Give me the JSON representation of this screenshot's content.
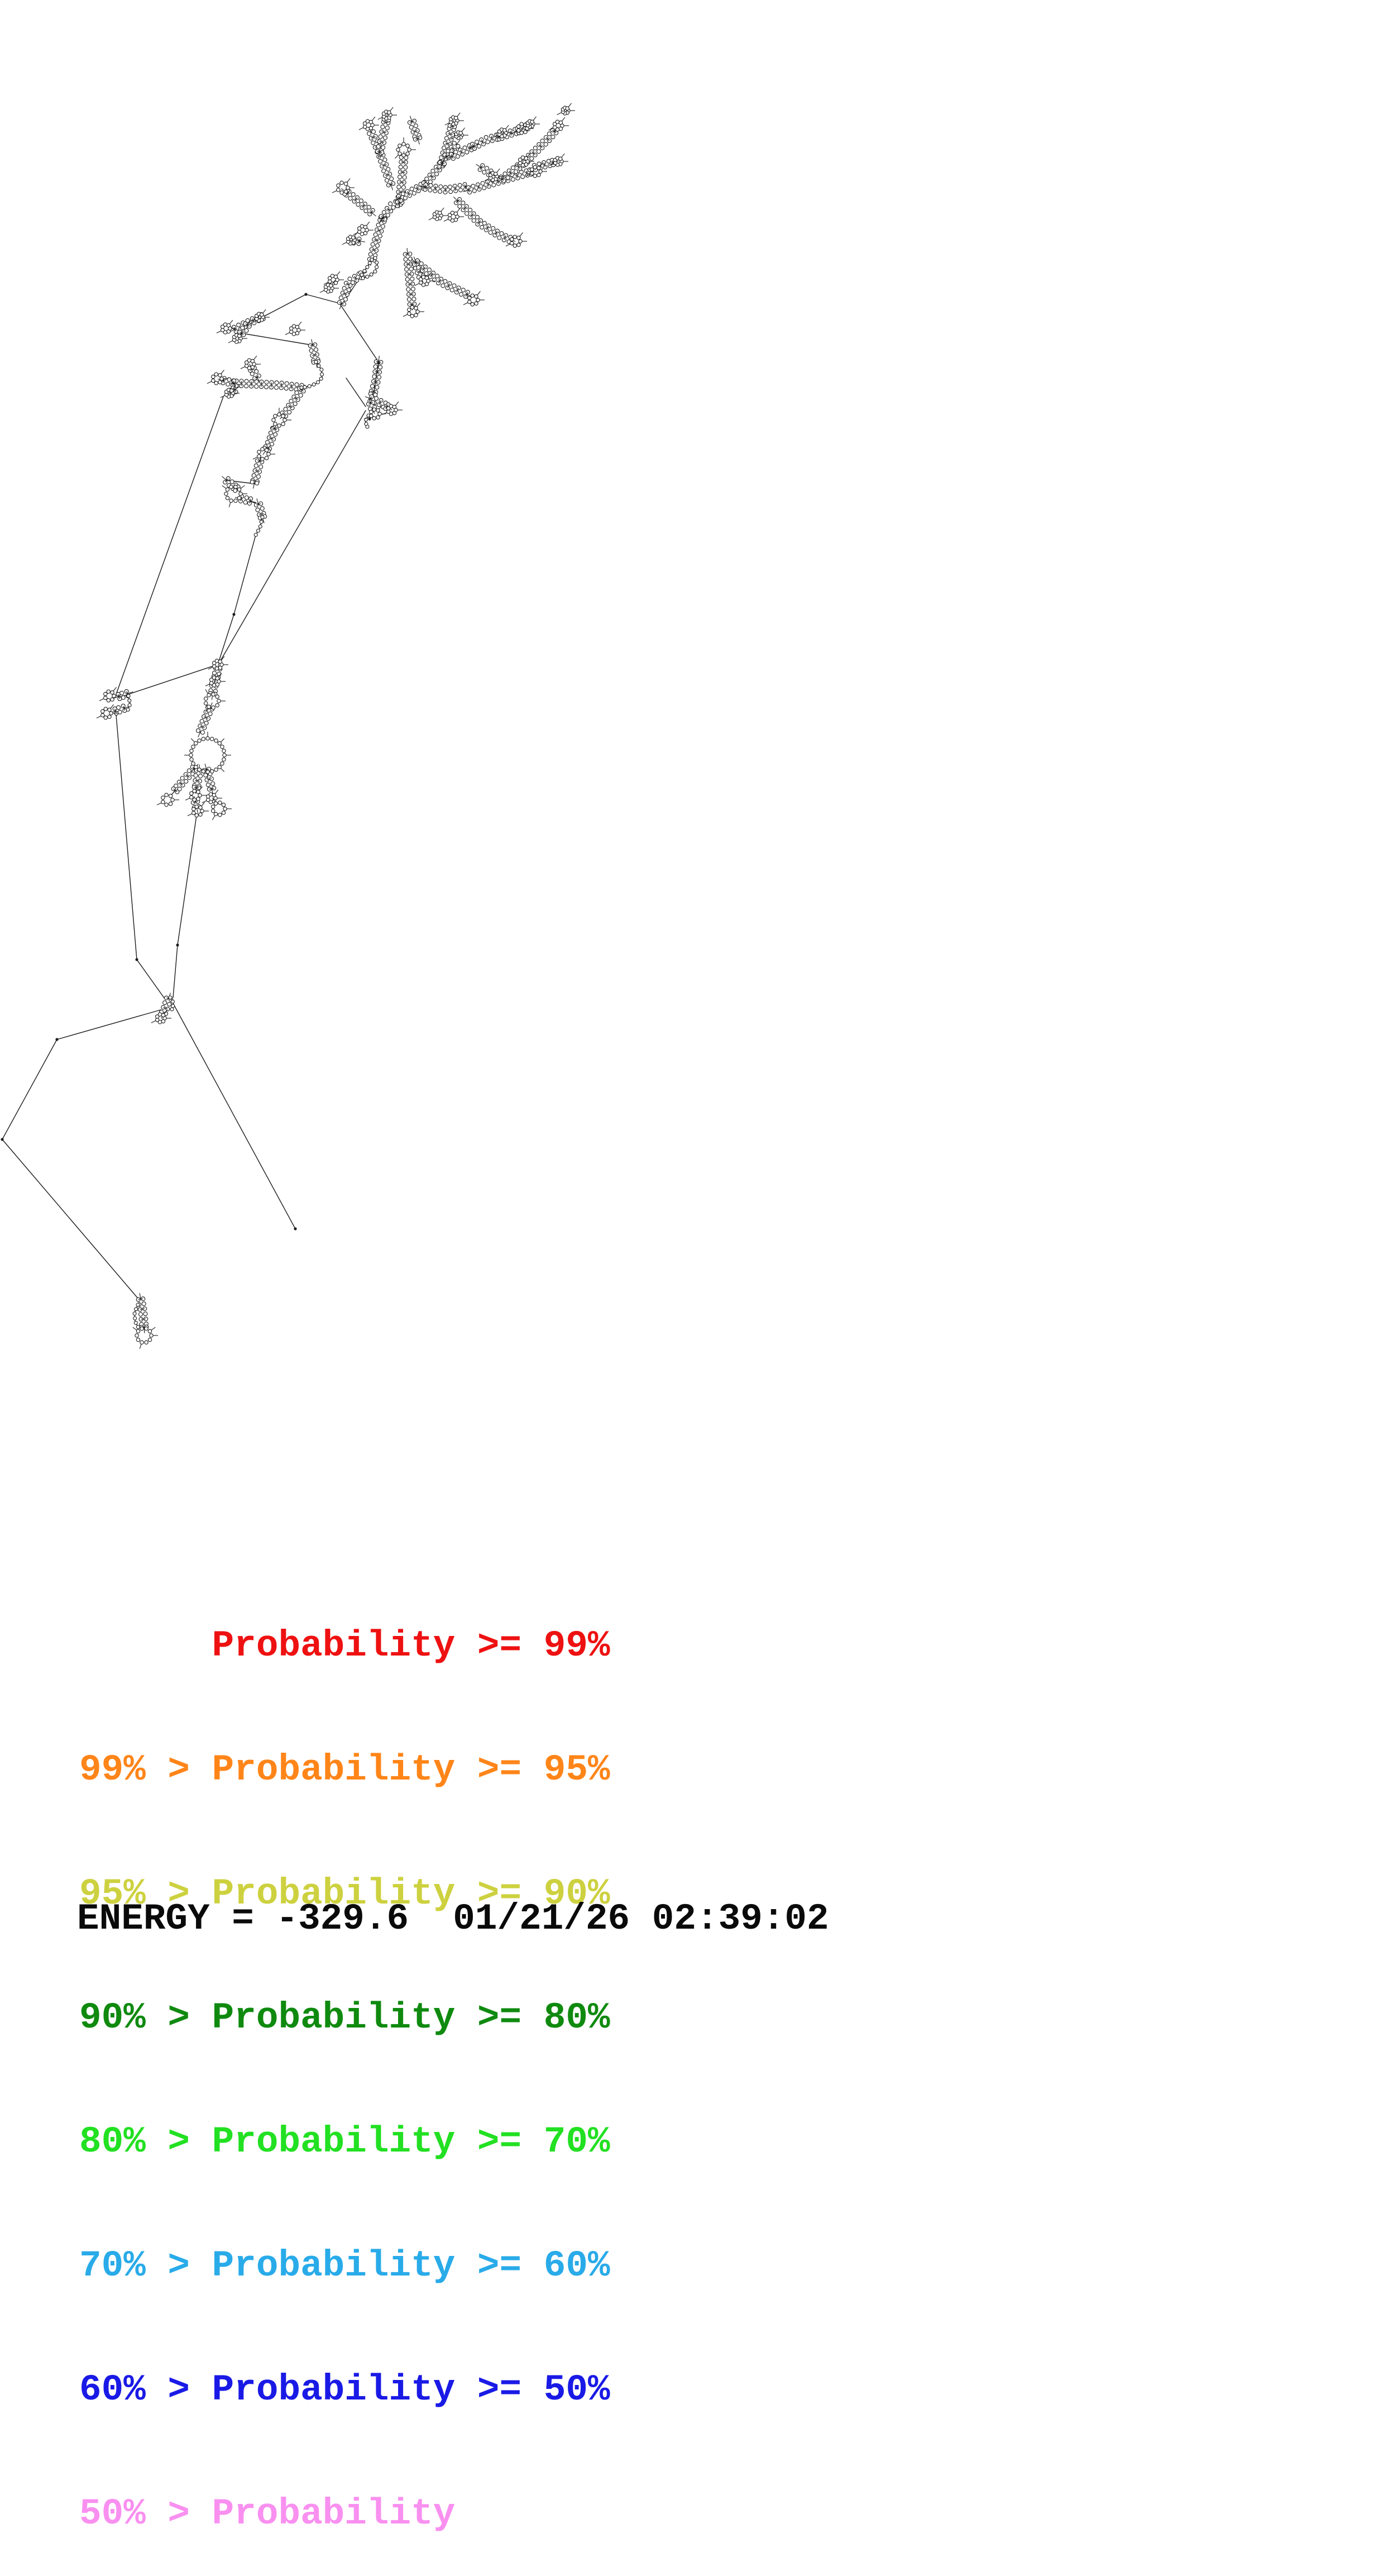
{
  "page": {
    "background": "#ffffff"
  },
  "legend": {
    "rows": [
      {
        "text": "      Probability >= 99%",
        "color": "#ee1111"
      },
      {
        "text": "99% > Probability >= 95%",
        "color": "#ff8519"
      },
      {
        "text": "95% > Probability >= 90%",
        "color": "#cdd13f"
      },
      {
        "text": "90% > Probability >= 80%",
        "color": "#0f8a0f"
      },
      {
        "text": "80% > Probability >= 70%",
        "color": "#22e022"
      },
      {
        "text": "70% > Probability >= 60%",
        "color": "#29abe9"
      },
      {
        "text": "60% > Probability >= 50%",
        "color": "#1a1ae6"
      },
      {
        "text": "50% > Probability",
        "color": "#f990f0"
      }
    ]
  },
  "footer": {
    "energy_line": "ENERGY = -329.6  01/21/26 02:39:02"
  },
  "structure": {
    "stroke": "#1c1c1c",
    "lines": [
      [
        443,
        582,
        548,
        527
      ],
      [
        548,
        527,
        608,
        543
      ],
      [
        435,
        597,
        560,
        618
      ],
      [
        608,
        543,
        678,
        648
      ],
      [
        668,
        462,
        614,
        543
      ],
      [
        678,
        650,
        668,
        712
      ],
      [
        620,
        677,
        655,
        728
      ],
      [
        655,
        735,
        396,
        1181
      ],
      [
        458,
        958,
        419,
        1100
      ],
      [
        419,
        1100,
        392,
        1184
      ],
      [
        400,
        710,
        208,
        1243
      ],
      [
        215,
        1248,
        383,
        1192
      ],
      [
        208,
        1280,
        245,
        1718
      ],
      [
        245,
        1718,
        295,
        1788
      ],
      [
        352,
        1460,
        318,
        1692
      ],
      [
        318,
        1692,
        310,
        1786
      ],
      [
        288,
        1808,
        102,
        1861
      ],
      [
        102,
        1861,
        4,
        2040
      ],
      [
        4,
        2040,
        250,
        2328
      ],
      [
        312,
        1800,
        529,
        2200
      ],
      [
        456,
        866,
        406,
        860
      ],
      [
        450,
        898,
        463,
        903
      ]
    ],
    "stems": [
      [
        [
          612,
          543
        ],
        [
          625,
          505
        ],
        [
          648,
          492
        ]
      ],
      [
        [
          666,
          465
        ],
        [
          672,
          438
        ],
        [
          680,
          410
        ],
        [
          686,
          390
        ]
      ],
      [
        [
          686,
          390
        ],
        [
          702,
          368
        ],
        [
          716,
          362
        ]
      ],
      [
        [
          716,
          362
        ],
        [
          722,
          300
        ],
        [
          723,
          282
        ]
      ],
      [
        [
          716,
          355
        ],
        [
          762,
          330
        ]
      ],
      [
        [
          762,
          330
        ],
        [
          792,
          292
        ]
      ],
      [
        [
          792,
          292
        ],
        [
          806,
          242
        ],
        [
          810,
          226
        ]
      ],
      [
        [
          800,
          280
        ],
        [
          818,
          258
        ]
      ],
      [
        [
          810,
          280
        ],
        [
          848,
          262
        ]
      ],
      [
        [
          848,
          262
        ],
        [
          872,
          250
        ],
        [
          893,
          245
        ]
      ],
      [
        [
          898,
          244
        ],
        [
          928,
          234
        ]
      ],
      [
        [
          928,
          234
        ],
        [
          944,
          227
        ]
      ],
      [
        [
          862,
          300
        ],
        [
          878,
          310
        ]
      ],
      [
        [
          762,
          335
        ],
        [
          800,
          340
        ],
        [
          836,
          334
        ]
      ],
      [
        [
          840,
          340
        ],
        [
          900,
          322
        ],
        [
          950,
          308
        ]
      ],
      [
        [
          900,
          320
        ],
        [
          940,
          290
        ],
        [
          985,
          245
        ],
        [
          994,
          234
        ]
      ],
      [
        [
          958,
          300
        ],
        [
          990,
          291
        ]
      ],
      [
        [
          820,
          360
        ],
        [
          860,
          400
        ],
        [
          900,
          424
        ],
        [
          914,
          429
        ]
      ],
      [
        [
          700,
          330
        ],
        [
          680,
          272
        ],
        [
          664,
          235
        ]
      ],
      [
        [
          680,
          272
        ],
        [
          690,
          226
        ],
        [
          692,
          214
        ]
      ],
      [
        [
          738,
          218
        ],
        [
          748,
          248
        ]
      ],
      [
        [
          665,
          380
        ],
        [
          636,
          356
        ],
        [
          620,
          344
        ]
      ],
      [
        [
          643,
          432
        ],
        [
          633,
          431
        ]
      ],
      [
        [
          730,
          455
        ],
        [
          738,
          545
        ]
      ],
      [
        [
          745,
          470
        ],
        [
          754,
          495
        ]
      ],
      [
        [
          745,
          470
        ],
        [
          790,
          505
        ],
        [
          838,
          528
        ]
      ],
      [
        [
          470,
          567
        ],
        [
          445,
          578
        ],
        [
          420,
          590
        ]
      ],
      [
        [
          443,
          582
        ],
        [
          432,
          598
        ]
      ],
      [
        [
          560,
          618
        ],
        [
          566,
          648
        ]
      ],
      [
        [
          540,
          694
        ],
        [
          505,
          690
        ],
        [
          470,
          688
        ],
        [
          418,
          686
        ]
      ],
      [
        [
          460,
          675
        ],
        [
          452,
          661
        ]
      ],
      [
        [
          418,
          686
        ],
        [
          399,
          681
        ]
      ],
      [
        [
          420,
          698
        ],
        [
          414,
          702
        ]
      ],
      [
        [
          540,
          698
        ],
        [
          516,
          734
        ],
        [
          507,
          744
        ]
      ],
      [
        [
          492,
          768
        ],
        [
          481,
          799
        ],
        [
          477,
          805
        ]
      ],
      [
        [
          465,
          826
        ],
        [
          456,
          864
        ]
      ],
      [
        [
          406,
          860
        ],
        [
          424,
          875
        ]
      ],
      [
        [
          432,
          893
        ],
        [
          448,
          897
        ]
      ],
      [
        [
          463,
          903
        ],
        [
          470,
          926
        ]
      ],
      [
        [
          678,
          648
        ],
        [
          674,
          680
        ],
        [
          668,
          706
        ]
      ],
      [
        [
          664,
          714
        ],
        [
          684,
          722
        ],
        [
          693,
          728
        ]
      ],
      [
        [
          664,
          722
        ],
        [
          668,
          733
        ]
      ],
      [
        [
          390,
          1197
        ],
        [
          387,
          1212
        ]
      ],
      [
        [
          383,
          1228
        ],
        [
          381,
          1242
        ]
      ],
      [
        [
          376,
          1268
        ],
        [
          366,
          1292
        ],
        [
          358,
          1312
        ]
      ],
      [
        [
          348,
          1376
        ],
        [
          330,
          1396
        ],
        [
          314,
          1415
        ]
      ],
      [
        [
          356,
          1380
        ],
        [
          352,
          1410
        ]
      ],
      [
        [
          350,
          1436
        ],
        [
          352,
          1445
        ]
      ],
      [
        [
          370,
          1378
        ],
        [
          376,
          1400
        ],
        [
          379,
          1412
        ]
      ],
      [
        [
          228,
          1242
        ],
        [
          213,
          1247
        ]
      ],
      [
        [
          222,
          1268
        ],
        [
          207,
          1273
        ]
      ],
      [
        [
          302,
          1788
        ],
        [
          296,
          1806
        ],
        [
          292,
          1816
        ]
      ],
      [
        [
          252,
          2326
        ],
        [
          256,
          2350
        ],
        [
          258,
          2376
        ]
      ]
    ],
    "chains": [
      [
        [
          648,
          492
        ],
        [
          658,
          478
        ],
        [
          666,
          465
        ]
      ],
      [
        [
          672,
          462
        ],
        [
          676,
          474
        ],
        [
          672,
          486
        ],
        [
          662,
          494
        ],
        [
          650,
          498
        ]
      ],
      [
        [
          566,
          648
        ],
        [
          576,
          662
        ],
        [
          577,
          676
        ],
        [
          568,
          686
        ],
        [
          553,
          692
        ],
        [
          540,
          694
        ]
      ],
      [
        [
          470,
          926
        ],
        [
          466,
          944
        ],
        [
          458,
          958
        ]
      ],
      [
        [
          660,
          744
        ],
        [
          654,
          754
        ],
        [
          658,
          764
        ]
      ],
      [
        [
          230,
          1246
        ],
        [
          233,
          1260
        ],
        [
          229,
          1271
        ]
      ],
      [
        [
          305,
          1786
        ],
        [
          311,
          1796
        ],
        [
          308,
          1807
        ]
      ],
      [
        [
          247,
          2336
        ],
        [
          241,
          2350
        ],
        [
          242,
          2366
        ],
        [
          248,
          2377
        ]
      ]
    ],
    "loops": [
      [
        813,
        216,
        6
      ],
      [
        822,
        242,
        5
      ],
      [
        900,
        238,
        6
      ],
      [
        936,
        230,
        8
      ],
      [
        950,
        222,
        5
      ],
      [
        884,
        316,
        6
      ],
      [
        812,
        388,
        7
      ],
      [
        784,
        386,
        6
      ],
      [
        723,
        268,
        10
      ],
      [
        614,
        336,
        9
      ],
      [
        660,
        224,
        7
      ],
      [
        693,
        206,
        6
      ],
      [
        1000,
        225,
        7
      ],
      [
        1013,
        198,
        5
      ],
      [
        960,
        307,
        8
      ],
      [
        1000,
        289,
        6
      ],
      [
        938,
        289,
        7
      ],
      [
        924,
        432,
        8
      ],
      [
        848,
        537,
        8
      ],
      [
        760,
        503,
        7
      ],
      [
        740,
        558,
        8
      ],
      [
        650,
        412,
        7
      ],
      [
        629,
        430,
        6
      ],
      [
        597,
        501,
        7
      ],
      [
        589,
        516,
        6
      ],
      [
        528,
        591,
        7
      ],
      [
        465,
        568,
        6
      ],
      [
        405,
        588,
        7
      ],
      [
        425,
        606,
        6
      ],
      [
        500,
        752,
        10
      ],
      [
        472,
        813,
        9
      ],
      [
        418,
        884,
        13
      ],
      [
        389,
        678,
        8
      ],
      [
        448,
        652,
        7
      ],
      [
        411,
        704,
        6
      ],
      [
        702,
        734,
        7
      ],
      [
        672,
        741,
        8
      ],
      [
        390,
        1190,
        7
      ],
      [
        385,
        1220,
        7
      ],
      [
        380,
        1255,
        12
      ],
      [
        372,
        1352,
        30
      ],
      [
        300,
        1432,
        9
      ],
      [
        350,
        1424,
        8
      ],
      [
        354,
        1452,
        8
      ],
      [
        379,
        1429,
        7
      ],
      [
        392,
        1448,
        11
      ],
      [
        196,
        1246,
        8
      ],
      [
        191,
        1277,
        8
      ],
      [
        288,
        1823,
        7
      ],
      [
        258,
        2391,
        13
      ]
    ],
    "end_dots": [
      [
        529,
        2200
      ],
      [
        102,
        1861
      ],
      [
        4,
        2040
      ],
      [
        318,
        1692
      ],
      [
        245,
        1718
      ],
      [
        419,
        1100
      ],
      [
        548,
        527
      ],
      [
        678,
        650
      ],
      [
        662,
        750
      ]
    ]
  }
}
